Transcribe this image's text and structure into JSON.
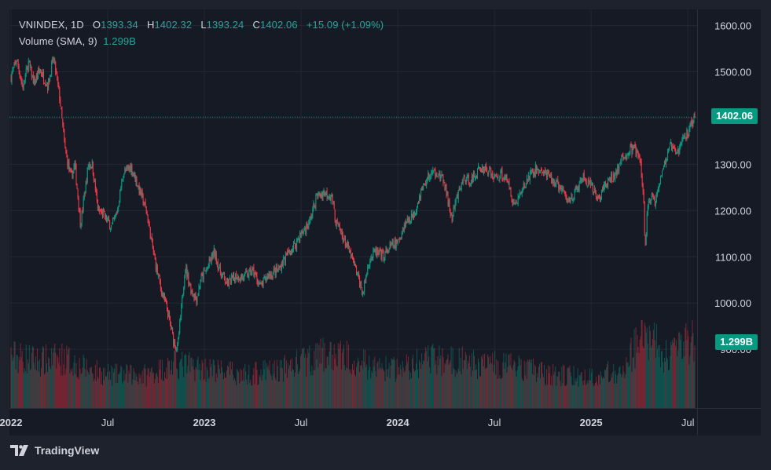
{
  "legend": {
    "symbol": "VNINDEX",
    "interval": "1D",
    "open_label": "O",
    "open": "1393.34",
    "high_label": "H",
    "high": "1402.32",
    "low_label": "L",
    "low": "1393.24",
    "close_label": "C",
    "close": "1402.06",
    "change": "+15.09 (+1.09%)",
    "volume_study": "Volume (SMA, 9)",
    "volume_value": "1.299B"
  },
  "tags": {
    "last_price": "1402.06",
    "last_volume": "1.299B"
  },
  "brand": {
    "name": "TradingView"
  },
  "colors": {
    "up": "#089981",
    "down": "#f23645",
    "background": "#161a25",
    "grid": "#232733",
    "axis_text": "#d1d4dc"
  },
  "chart_data": {
    "type": "candlestick",
    "title": "VNINDEX, 1D",
    "y_ticks": [
      900,
      1000,
      1100,
      1200,
      1300,
      1400,
      1500,
      1600
    ],
    "y_tick_labels": [
      "900.00",
      "1000.00",
      "1100.00",
      "1200.00",
      "1300.00",
      "",
      "1500.00",
      "1600.00"
    ],
    "ylim": [
      790,
      1635
    ],
    "x_ticks": [
      {
        "label": "2022",
        "t": 2022.0
      },
      {
        "label": "Jul",
        "t": 2022.5
      },
      {
        "label": "2023",
        "t": 2023.0
      },
      {
        "label": "Jul",
        "t": 2023.5
      },
      {
        "label": "2024",
        "t": 2024.0
      },
      {
        "label": "Jul",
        "t": 2024.5
      },
      {
        "label": "2025",
        "t": 2025.0
      },
      {
        "label": "Jul",
        "t": 2025.5
      }
    ],
    "xlim": [
      2022.0,
      2025.54
    ],
    "last_close": 1402.06,
    "price_path": [
      [
        2022.0,
        1490
      ],
      [
        2022.03,
        1528
      ],
      [
        2022.06,
        1465
      ],
      [
        2022.09,
        1520
      ],
      [
        2022.12,
        1475
      ],
      [
        2022.15,
        1505
      ],
      [
        2022.19,
        1470
      ],
      [
        2022.22,
        1530
      ],
      [
        2022.25,
        1450
      ],
      [
        2022.28,
        1330
      ],
      [
        2022.31,
        1270
      ],
      [
        2022.33,
        1300
      ],
      [
        2022.36,
        1170
      ],
      [
        2022.4,
        1300
      ],
      [
        2022.42,
        1300
      ],
      [
        2022.45,
        1200
      ],
      [
        2022.48,
        1190
      ],
      [
        2022.52,
        1165
      ],
      [
        2022.55,
        1200
      ],
      [
        2022.58,
        1280
      ],
      [
        2022.62,
        1295
      ],
      [
        2022.66,
        1250
      ],
      [
        2022.7,
        1200
      ],
      [
        2022.74,
        1100
      ],
      [
        2022.77,
        1040
      ],
      [
        2022.81,
        980
      ],
      [
        2022.84,
        920
      ],
      [
        2022.86,
        900
      ],
      [
        2022.88,
        980
      ],
      [
        2022.9,
        1080
      ],
      [
        2022.93,
        1030
      ],
      [
        2022.96,
        1010
      ],
      [
        2022.98,
        1050
      ],
      [
        2023.02,
        1080
      ],
      [
        2023.05,
        1110
      ],
      [
        2023.08,
        1070
      ],
      [
        2023.12,
        1040
      ],
      [
        2023.16,
        1060
      ],
      [
        2023.2,
        1055
      ],
      [
        2023.25,
        1070
      ],
      [
        2023.29,
        1035
      ],
      [
        2023.33,
        1060
      ],
      [
        2023.38,
        1070
      ],
      [
        2023.42,
        1100
      ],
      [
        2023.46,
        1120
      ],
      [
        2023.5,
        1150
      ],
      [
        2023.54,
        1170
      ],
      [
        2023.58,
        1230
      ],
      [
        2023.62,
        1240
      ],
      [
        2023.66,
        1230
      ],
      [
        2023.68,
        1175
      ],
      [
        2023.72,
        1140
      ],
      [
        2023.76,
        1100
      ],
      [
        2023.8,
        1050
      ],
      [
        2023.82,
        1020
      ],
      [
        2023.85,
        1090
      ],
      [
        2023.88,
        1110
      ],
      [
        2023.92,
        1100
      ],
      [
        2023.96,
        1120
      ],
      [
        2024.0,
        1130
      ],
      [
        2024.04,
        1175
      ],
      [
        2024.08,
        1190
      ],
      [
        2024.12,
        1240
      ],
      [
        2024.16,
        1275
      ],
      [
        2024.2,
        1285
      ],
      [
        2024.24,
        1260
      ],
      [
        2024.28,
        1180
      ],
      [
        2024.3,
        1220
      ],
      [
        2024.34,
        1270
      ],
      [
        2024.38,
        1265
      ],
      [
        2024.42,
        1290
      ],
      [
        2024.46,
        1290
      ],
      [
        2024.5,
        1270
      ],
      [
        2024.54,
        1280
      ],
      [
        2024.58,
        1250
      ],
      [
        2024.6,
        1210
      ],
      [
        2024.64,
        1240
      ],
      [
        2024.68,
        1275
      ],
      [
        2024.72,
        1290
      ],
      [
        2024.76,
        1280
      ],
      [
        2024.8,
        1265
      ],
      [
        2024.84,
        1250
      ],
      [
        2024.88,
        1220
      ],
      [
        2024.92,
        1240
      ],
      [
        2024.96,
        1270
      ],
      [
        2025.0,
        1250
      ],
      [
        2025.04,
        1225
      ],
      [
        2025.08,
        1260
      ],
      [
        2025.12,
        1275
      ],
      [
        2025.16,
        1310
      ],
      [
        2025.2,
        1330
      ],
      [
        2025.22,
        1335
      ],
      [
        2025.25,
        1315
      ],
      [
        2025.27,
        1240
      ],
      [
        2025.28,
        1110
      ],
      [
        2025.29,
        1200
      ],
      [
        2025.31,
        1230
      ],
      [
        2025.33,
        1220
      ],
      [
        2025.36,
        1280
      ],
      [
        2025.38,
        1300
      ],
      [
        2025.41,
        1340
      ],
      [
        2025.44,
        1320
      ],
      [
        2025.47,
        1350
      ],
      [
        2025.5,
        1370
      ],
      [
        2025.52,
        1390
      ],
      [
        2025.54,
        1402
      ]
    ],
    "volume_path": [
      [
        2022.0,
        0.95
      ],
      [
        2022.15,
        0.85
      ],
      [
        2022.28,
        0.9
      ],
      [
        2022.36,
        0.75
      ],
      [
        2022.5,
        0.6
      ],
      [
        2022.7,
        0.6
      ],
      [
        2022.85,
        0.8
      ],
      [
        2022.95,
        0.75
      ],
      [
        2023.2,
        0.6
      ],
      [
        2023.4,
        0.7
      ],
      [
        2023.6,
        0.95
      ],
      [
        2023.75,
        0.95
      ],
      [
        2023.85,
        0.75
      ],
      [
        2024.0,
        0.7
      ],
      [
        2024.2,
        0.9
      ],
      [
        2024.4,
        0.8
      ],
      [
        2024.6,
        0.75
      ],
      [
        2024.8,
        0.6
      ],
      [
        2025.0,
        0.55
      ],
      [
        2025.15,
        0.7
      ],
      [
        2025.27,
        1.3
      ],
      [
        2025.32,
        1.2
      ],
      [
        2025.4,
        0.9
      ],
      [
        2025.54,
        1.3
      ]
    ],
    "volume_max": 1.6
  }
}
